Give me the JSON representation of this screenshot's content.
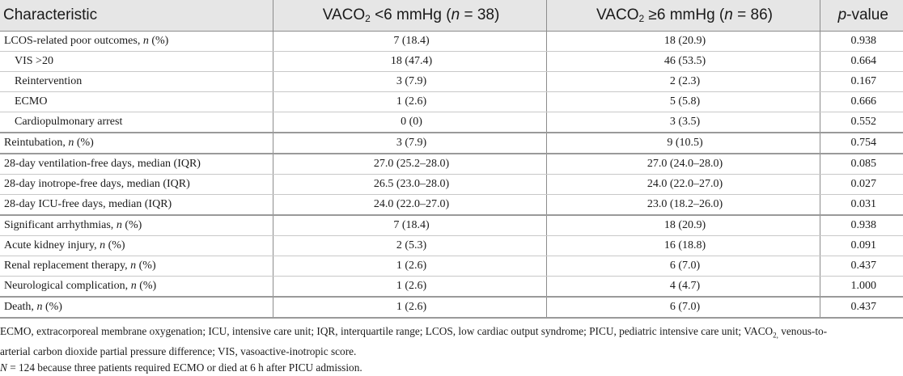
{
  "table": {
    "header": {
      "characteristic": "Characteristic",
      "col1_pre": "VACO",
      "col1_sub": "2",
      "col1_mid": " <6 mmHg (",
      "col1_n": "n",
      "col1_post": " = 38)",
      "col2_pre": "VACO",
      "col2_sub": "2",
      "col2_mid": " ≥6 mmHg (",
      "col2_n": "n",
      "col2_post": " = 86)",
      "p_italic": "p",
      "p_rest": "-value"
    },
    "rows": [
      {
        "label": "LCOS-related poor outcomes, ",
        "n": "n",
        "suffix": " (%)",
        "v1": "7 (18.4)",
        "v2": "18 (20.9)",
        "p": "0.938"
      },
      {
        "label": "VIS >20",
        "v1": "18 (47.4)",
        "v2": "46 (53.5)",
        "p": "0.664"
      },
      {
        "label": "Reintervention",
        "v1": "3 (7.9)",
        "v2": "2 (2.3)",
        "p": "0.167"
      },
      {
        "label": "ECMO",
        "v1": "1 (2.6)",
        "v2": "5 (5.8)",
        "p": "0.666"
      },
      {
        "label": "Cardiopulmonary arrest",
        "v1": "0 (0)",
        "v2": "3 (3.5)",
        "p": "0.552"
      },
      {
        "label": "Reintubation, ",
        "n": "n",
        "suffix": " (%)",
        "v1": "3 (7.9)",
        "v2": "9 (10.5)",
        "p": "0.754"
      },
      {
        "label": "28-day ventilation-free days, median (IQR)",
        "v1": "27.0 (25.2–28.0)",
        "v2": "27.0 (24.0–28.0)",
        "p": "0.085"
      },
      {
        "label": "28-day inotrope-free days, median (IQR)",
        "v1": "26.5 (23.0–28.0)",
        "v2": "24.0 (22.0–27.0)",
        "p": "0.027"
      },
      {
        "label": "28-day ICU-free days, median (IQR)",
        "v1": "24.0 (22.0–27.0)",
        "v2": "23.0 (18.2–26.0)",
        "p": "0.031"
      },
      {
        "label": "Significant arrhythmias, ",
        "n": "n",
        "suffix": " (%)",
        "v1": "7 (18.4)",
        "v2": "18 (20.9)",
        "p": "0.938"
      },
      {
        "label": "Acute kidney injury, ",
        "n": "n",
        "suffix": " (%)",
        "v1": "2 (5.3)",
        "v2": "16 (18.8)",
        "p": "0.091"
      },
      {
        "label": "Renal replacement therapy, ",
        "n": "n",
        "suffix": " (%)",
        "v1": "1 (2.6)",
        "v2": "6 (7.0)",
        "p": "0.437"
      },
      {
        "label": "Neurological complication, ",
        "n": "n",
        "suffix": " (%)",
        "v1": "1 (2.6)",
        "v2": "4 (4.7)",
        "p": "1.000"
      },
      {
        "label": "Death, ",
        "n": "n",
        "suffix": " (%)",
        "v1": "1 (2.6)",
        "v2": "6 (7.0)",
        "p": "0.437"
      }
    ]
  },
  "footnotes": {
    "line1_a": "ECMO, extracorporeal membrane oxygenation; ICU, intensive care unit; IQR, interquartile range; LCOS, low cardiac output syndrome; PICU, pediatric intensive care unit; VACO",
    "line1_sub": "2,",
    "line1_b": " venous-to-",
    "line2": "arterial carbon dioxide partial pressure difference; VIS, vasoactive-inotropic score.",
    "line3_n": "N",
    "line3_rest": " = 124 because three patients required ECMO or died at 6 h after PICU admission."
  }
}
